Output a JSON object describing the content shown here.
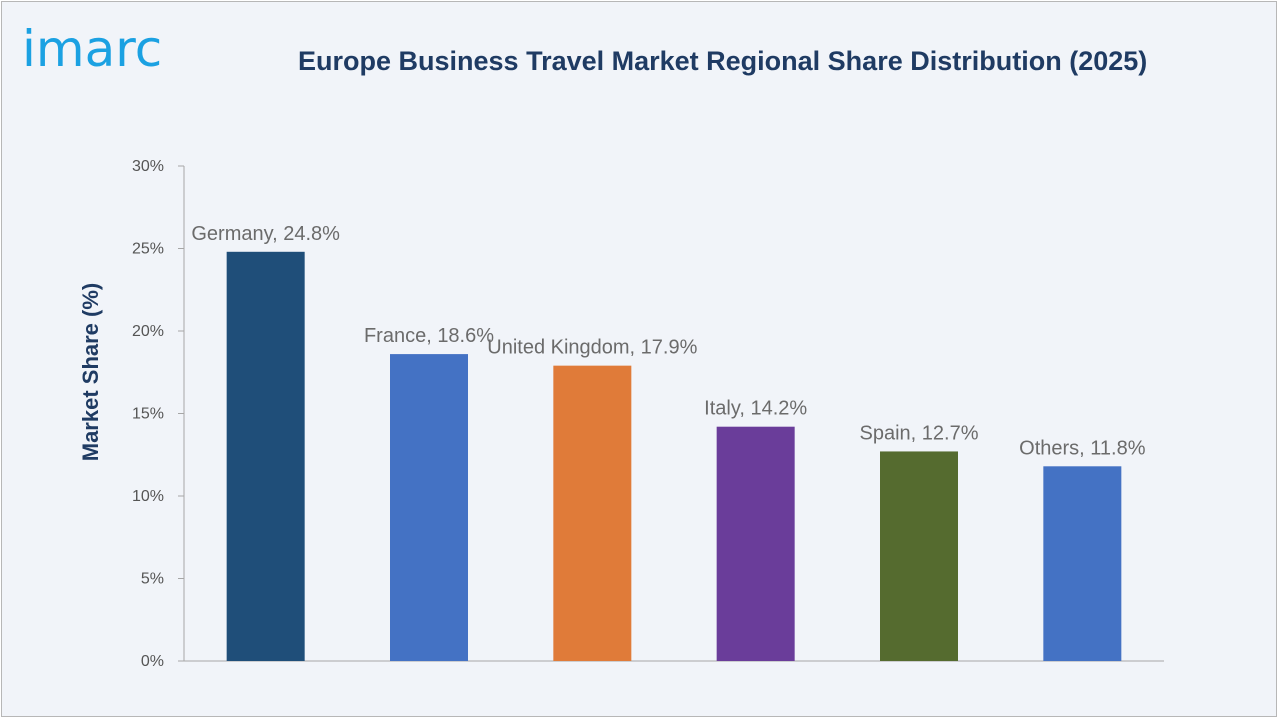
{
  "logo": {
    "text": "imarc"
  },
  "chart_data": {
    "type": "bar",
    "title": "Europe Business Travel Market Regional Share Distribution (2025)",
    "xlabel": "",
    "ylabel": "Market Share (%)",
    "ylim": [
      0,
      30
    ],
    "y_ticks": [
      0,
      5,
      10,
      15,
      20,
      25,
      30
    ],
    "y_tick_labels": [
      "0%",
      "5%",
      "10%",
      "15%",
      "20%",
      "25%",
      "30%"
    ],
    "categories": [
      "Germany",
      "France",
      "United Kingdom",
      "Italy",
      "Spain",
      "Others"
    ],
    "values": [
      24.8,
      18.6,
      17.9,
      14.2,
      12.7,
      11.8
    ],
    "data_labels": [
      "Germany, 24.8%",
      "France, 18.6%",
      "United Kingdom, 17.9%",
      "Italy, 14.2%",
      "Spain, 12.7%",
      "Others, 11.8%"
    ],
    "colors": [
      "#1f4e79",
      "#4472c4",
      "#e07b39",
      "#6a3d9a",
      "#556b2f",
      "#4472c4"
    ],
    "grid": false,
    "legend": "none"
  }
}
